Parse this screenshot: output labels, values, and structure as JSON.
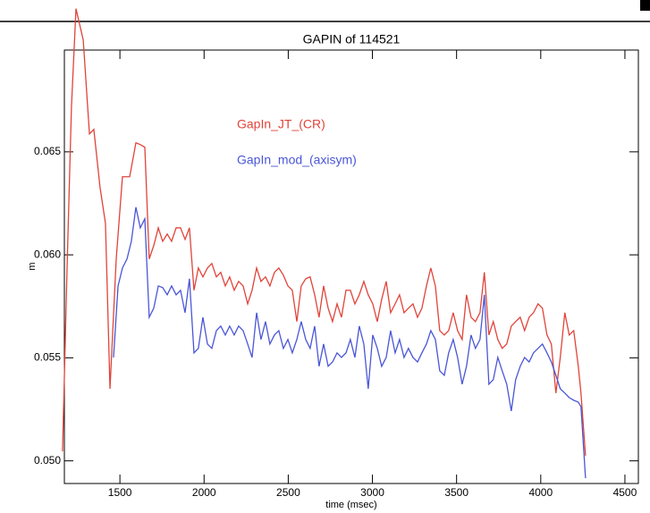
{
  "chart_data": {
    "type": "line",
    "title": "GAPIN of 114521",
    "x_label": "time (msec)",
    "y_label": "m",
    "xlim": [
      1170,
      4580
    ],
    "ylim": [
      0.0489,
      0.06994
    ],
    "xticks": [
      1500,
      2000,
      2500,
      3000,
      3500,
      4000,
      4500
    ],
    "yticks": [
      {
        "value": 0.05,
        "label": "0.050"
      },
      0.055,
      {
        "value": 0.06,
        "label": "0.060"
      },
      0.065
    ],
    "series": [
      {
        "name": "GapIn_JT_(CR)",
        "color": "#e0443a",
        "x": [
          1159,
          1186,
          1212,
          1239,
          1282,
          1319,
          1345,
          1382,
          1414,
          1441,
          1478,
          1515,
          1558,
          1595,
          1621,
          1648,
          1674,
          1701,
          1728,
          1754,
          1781,
          1807,
          1834,
          1860,
          1887,
          1913,
          1940,
          1966,
          1993,
          2020,
          2046,
          2073,
          2099,
          2126,
          2152,
          2179,
          2205,
          2232,
          2259,
          2285,
          2312,
          2338,
          2365,
          2391,
          2418,
          2444,
          2471,
          2498,
          2524,
          2551,
          2577,
          2604,
          2630,
          2657,
          2683,
          2710,
          2737,
          2763,
          2790,
          2816,
          2843,
          2869,
          2896,
          2922,
          2949,
          2975,
          3002,
          3029,
          3055,
          3082,
          3108,
          3135,
          3161,
          3188,
          3214,
          3241,
          3268,
          3294,
          3321,
          3347,
          3374,
          3400,
          3427,
          3453,
          3480,
          3506,
          3533,
          3559,
          3586,
          3612,
          3639,
          3665,
          3692,
          3718,
          3745,
          3771,
          3798,
          3825,
          3851,
          3878,
          3904,
          3931,
          3957,
          3984,
          4010,
          4037,
          4063,
          4090,
          4116,
          4143,
          4169,
          4196,
          4223,
          4239,
          4266
        ],
        "values": [
          0.05046,
          0.05936,
          0.06717,
          0.07195,
          0.07043,
          0.06587,
          0.06609,
          0.06327,
          0.06153,
          0.0535,
          0.0598,
          0.06379,
          0.06379,
          0.06544,
          0.06535,
          0.06522,
          0.0598,
          0.06045,
          0.06131,
          0.06066,
          0.06101,
          0.06066,
          0.06131,
          0.06131,
          0.06075,
          0.06131,
          0.05828,
          0.05936,
          0.05893,
          0.05936,
          0.05958,
          0.05893,
          0.05915,
          0.05849,
          0.05893,
          0.05828,
          0.05871,
          0.05849,
          0.05762,
          0.05828,
          0.05936,
          0.05871,
          0.05893,
          0.05849,
          0.05915,
          0.05936,
          0.05901,
          0.05849,
          0.05828,
          0.05676,
          0.05849,
          0.05884,
          0.05893,
          0.05806,
          0.05697,
          0.05849,
          0.05741,
          0.05676,
          0.05762,
          0.05697,
          0.05828,
          0.05828,
          0.05762,
          0.05806,
          0.05871,
          0.05806,
          0.05762,
          0.05676,
          0.05784,
          0.05871,
          0.05719,
          0.05762,
          0.05806,
          0.05719,
          0.05741,
          0.05762,
          0.05697,
          0.05741,
          0.05849,
          0.05936,
          0.05849,
          0.05632,
          0.05611,
          0.05632,
          0.05719,
          0.05632,
          0.05589,
          0.05806,
          0.05697,
          0.05676,
          0.05719,
          0.05915,
          0.05611,
          0.05676,
          0.05589,
          0.05546,
          0.05567,
          0.05654,
          0.05676,
          0.05697,
          0.05632,
          0.05697,
          0.05719,
          0.05762,
          0.05741,
          0.05611,
          0.05567,
          0.05329,
          0.05502,
          0.05719,
          0.05611,
          0.05632,
          0.05459,
          0.05329,
          0.05025
        ]
      },
      {
        "name": "GapIn_mod_(axisym)",
        "color": "#4a56d6",
        "x": [
          1462,
          1489,
          1515,
          1542,
          1568,
          1595,
          1621,
          1648,
          1674,
          1701,
          1728,
          1754,
          1781,
          1807,
          1834,
          1860,
          1887,
          1913,
          1940,
          1966,
          1993,
          2020,
          2046,
          2073,
          2099,
          2126,
          2152,
          2179,
          2205,
          2232,
          2259,
          2285,
          2312,
          2338,
          2365,
          2391,
          2418,
          2444,
          2471,
          2498,
          2524,
          2551,
          2577,
          2604,
          2630,
          2657,
          2683,
          2710,
          2737,
          2763,
          2790,
          2816,
          2843,
          2869,
          2896,
          2922,
          2949,
          2975,
          3002,
          3029,
          3055,
          3082,
          3108,
          3135,
          3161,
          3188,
          3214,
          3241,
          3268,
          3294,
          3321,
          3347,
          3374,
          3400,
          3427,
          3453,
          3480,
          3506,
          3533,
          3559,
          3586,
          3612,
          3639,
          3665,
          3692,
          3718,
          3745,
          3771,
          3798,
          3825,
          3851,
          3878,
          3904,
          3931,
          3957,
          3984,
          4010,
          4037,
          4063,
          4090,
          4116,
          4143,
          4169,
          4196,
          4223,
          4239,
          4266
        ],
        "values": [
          0.05502,
          0.05849,
          0.05936,
          0.0598,
          0.06066,
          0.06231,
          0.06131,
          0.06175,
          0.05697,
          0.05741,
          0.05849,
          0.05841,
          0.05806,
          0.05849,
          0.05806,
          0.05828,
          0.05719,
          0.05884,
          0.05524,
          0.05546,
          0.05697,
          0.05567,
          0.05546,
          0.05632,
          0.05654,
          0.05611,
          0.05654,
          0.05611,
          0.05654,
          0.05632,
          0.05567,
          0.05502,
          0.05719,
          0.05589,
          0.05676,
          0.05567,
          0.05611,
          0.05632,
          0.05546,
          0.05589,
          0.05524,
          0.05589,
          0.05676,
          0.05589,
          0.05546,
          0.05654,
          0.05459,
          0.05567,
          0.05459,
          0.0548,
          0.05524,
          0.05502,
          0.05524,
          0.05589,
          0.05502,
          0.05654,
          0.05567,
          0.0535,
          0.05611,
          0.05546,
          0.05459,
          0.05502,
          0.05632,
          0.05524,
          0.05589,
          0.05502,
          0.05546,
          0.05502,
          0.0548,
          0.05524,
          0.05567,
          0.05632,
          0.05589,
          0.05437,
          0.05415,
          0.05524,
          0.05589,
          0.05502,
          0.05372,
          0.05459,
          0.05611,
          0.05546,
          0.05589,
          0.05806,
          0.05372,
          0.05394,
          0.05502,
          0.05437,
          0.05372,
          0.05242,
          0.05394,
          0.05459,
          0.05502,
          0.0548,
          0.05524,
          0.05546,
          0.05567,
          0.05524,
          0.0548,
          0.05415,
          0.0535,
          0.05329,
          0.05307,
          0.05294,
          0.05285,
          0.05263,
          0.04916
        ]
      }
    ]
  }
}
